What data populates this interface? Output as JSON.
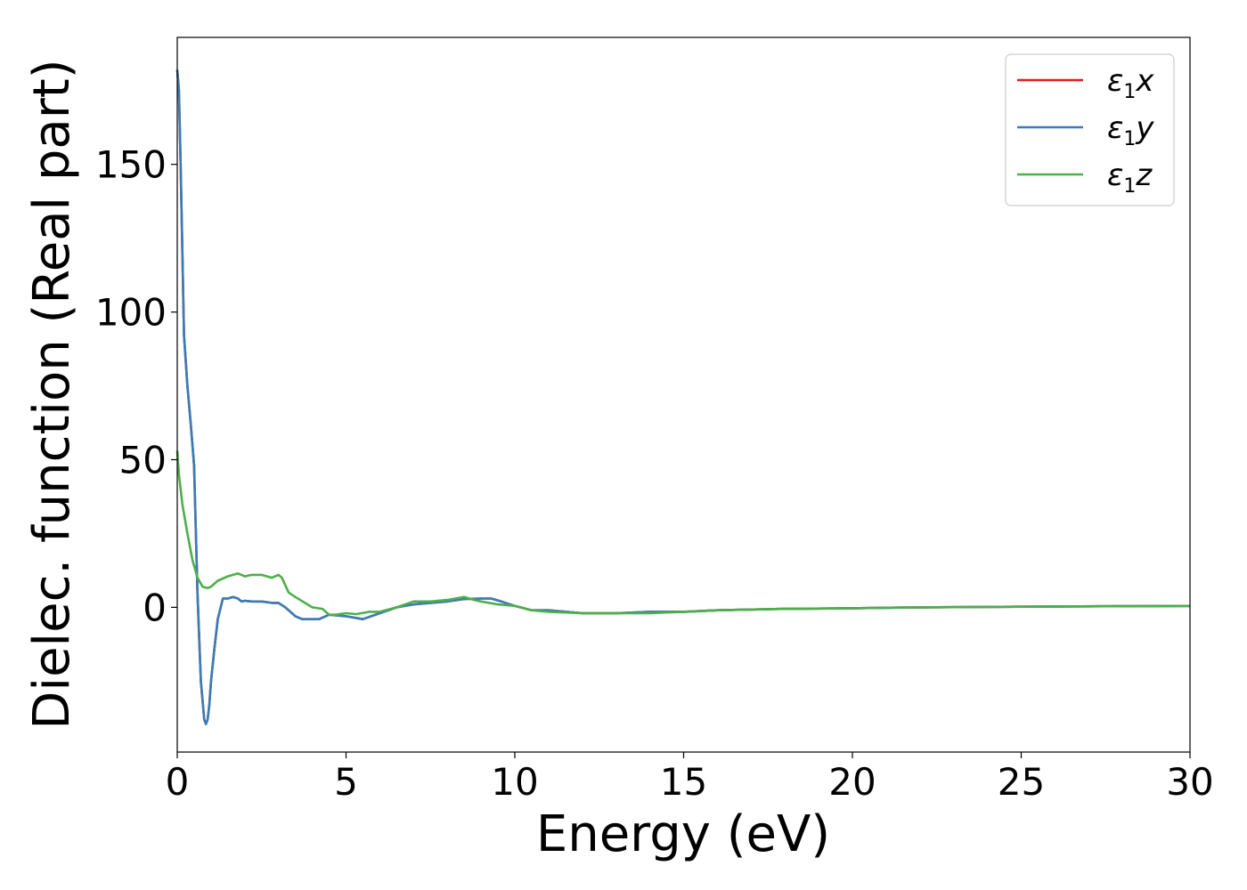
{
  "chart_data": {
    "type": "line",
    "title": "",
    "xlabel": "Energy (eV)",
    "ylabel": "Dielec. function (Real part)",
    "xlim": [
      0,
      30
    ],
    "ylim": [
      -49,
      193
    ],
    "xticks": [
      0,
      5,
      10,
      15,
      20,
      25,
      30
    ],
    "yticks": [
      0,
      50,
      100,
      150
    ],
    "grid": false,
    "legend_position": "top-right",
    "series": [
      {
        "name": "x",
        "legend_base": "ε",
        "legend_sub": "1",
        "legend_var": "x",
        "color": "#e41a1c",
        "x": [
          0,
          0.05,
          0.1,
          0.2,
          0.3,
          0.4,
          0.5,
          0.6,
          0.7,
          0.8,
          0.85,
          0.9,
          0.95,
          1.0,
          1.1,
          1.2,
          1.35,
          1.5,
          1.65,
          1.8,
          1.9,
          2.0,
          2.2,
          2.5,
          2.8,
          3.0,
          3.2,
          3.5,
          3.7,
          4.0,
          4.2,
          4.5,
          5.0,
          5.5,
          6.0,
          6.5,
          7.0,
          7.5,
          8.0,
          8.5,
          9.0,
          9.3,
          9.6,
          10.0,
          10.5,
          11.0,
          12.0,
          13.0,
          14.0,
          15.0,
          16.0,
          18.0,
          20.0,
          22.0,
          25.0,
          28.0,
          30.0
        ],
        "y": [
          182,
          175,
          150,
          92,
          75,
          62,
          48,
          5,
          -25,
          -38,
          -39.5,
          -38,
          -33,
          -25,
          -14,
          -4,
          3,
          3,
          3.5,
          3,
          2,
          2.2,
          2,
          2,
          1.5,
          1.5,
          0,
          -3,
          -4,
          -4,
          -4,
          -2.5,
          -3,
          -4,
          -2,
          0,
          1,
          1.5,
          2,
          2.8,
          3,
          3,
          2,
          0.5,
          -1,
          -1,
          -2,
          -2,
          -1.5,
          -1.5,
          -1,
          -0.5,
          -0.3,
          0,
          0.2,
          0.4,
          0.5
        ]
      },
      {
        "name": "y",
        "legend_base": "ε",
        "legend_sub": "1",
        "legend_var": "y",
        "color": "#377eb8",
        "x": [
          0,
          0.05,
          0.1,
          0.2,
          0.3,
          0.4,
          0.5,
          0.6,
          0.7,
          0.8,
          0.85,
          0.9,
          0.95,
          1.0,
          1.1,
          1.2,
          1.35,
          1.5,
          1.65,
          1.8,
          1.9,
          2.0,
          2.2,
          2.5,
          2.8,
          3.0,
          3.2,
          3.5,
          3.7,
          4.0,
          4.2,
          4.5,
          5.0,
          5.5,
          6.0,
          6.5,
          7.0,
          7.5,
          8.0,
          8.5,
          9.0,
          9.3,
          9.6,
          10.0,
          10.5,
          11.0,
          12.0,
          13.0,
          14.0,
          15.0,
          16.0,
          18.0,
          20.0,
          22.0,
          25.0,
          28.0,
          30.0
        ],
        "y": [
          182,
          175,
          150,
          92,
          75,
          62,
          48,
          5,
          -25,
          -38,
          -39.5,
          -38,
          -33,
          -25,
          -14,
          -4,
          3,
          3,
          3.5,
          3,
          2,
          2.2,
          2,
          2,
          1.5,
          1.5,
          0,
          -3,
          -4,
          -4,
          -4,
          -2.5,
          -3,
          -4,
          -2,
          0,
          1,
          1.5,
          2,
          2.8,
          3,
          3,
          2,
          0.5,
          -1,
          -1,
          -2,
          -2,
          -1.5,
          -1.5,
          -1,
          -0.5,
          -0.3,
          0,
          0.2,
          0.4,
          0.5
        ]
      },
      {
        "name": "z",
        "legend_base": "ε",
        "legend_sub": "1",
        "legend_var": "z",
        "color": "#4daf4a",
        "x": [
          0,
          0.05,
          0.15,
          0.3,
          0.45,
          0.6,
          0.75,
          0.9,
          1.0,
          1.2,
          1.5,
          1.8,
          2.0,
          2.2,
          2.5,
          2.8,
          3.0,
          3.1,
          3.3,
          3.5,
          4.0,
          4.3,
          4.5,
          4.7,
          5.0,
          5.3,
          5.7,
          6.0,
          6.5,
          7.0,
          7.5,
          8.0,
          8.5,
          8.8,
          9.0,
          9.5,
          10.0,
          10.5,
          11.0,
          12.0,
          13.0,
          14.0,
          15.0,
          16.0,
          18.0,
          20.0,
          22.0,
          25.0,
          28.0,
          30.0
        ],
        "y": [
          53,
          45,
          35,
          25,
          16,
          10,
          7,
          6.5,
          7,
          9,
          10.5,
          11.5,
          10.5,
          11,
          11,
          10,
          11,
          10,
          5,
          3.5,
          0,
          -0.5,
          -2.5,
          -2.5,
          -2,
          -2.3,
          -1.5,
          -1.5,
          0,
          2,
          2,
          2.5,
          3.5,
          2.5,
          2,
          1,
          0.5,
          -1,
          -1.5,
          -2,
          -2,
          -2,
          -1.5,
          -1,
          -0.5,
          -0.3,
          0,
          0.2,
          0.4,
          0.5
        ]
      }
    ]
  }
}
